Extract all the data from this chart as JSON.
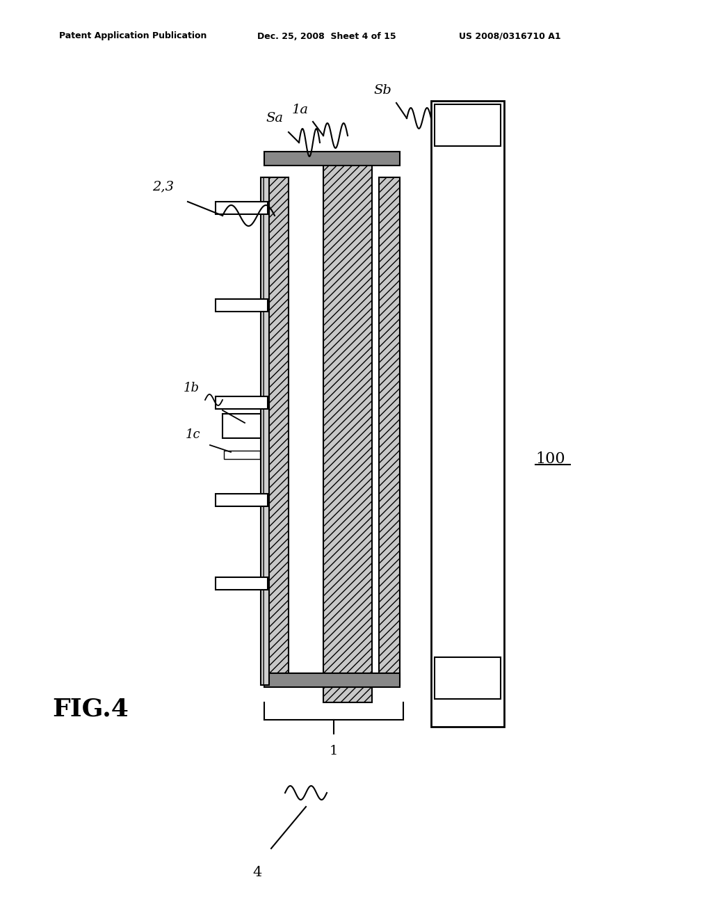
{
  "bg_color": "#ffffff",
  "header_left": "Patent Application Publication",
  "header_mid": "Dec. 25, 2008  Sheet 4 of 15",
  "header_right": "US 2008/0316710 A1",
  "fig_label": "FIG.4",
  "label_100": "100",
  "label_1": "1",
  "label_1a": "1a",
  "label_1b": "1b",
  "label_1c": "1c",
  "label_2_3": "2,3",
  "label_Sa": "Sa",
  "label_Sb": "Sb",
  "label_4": "4"
}
